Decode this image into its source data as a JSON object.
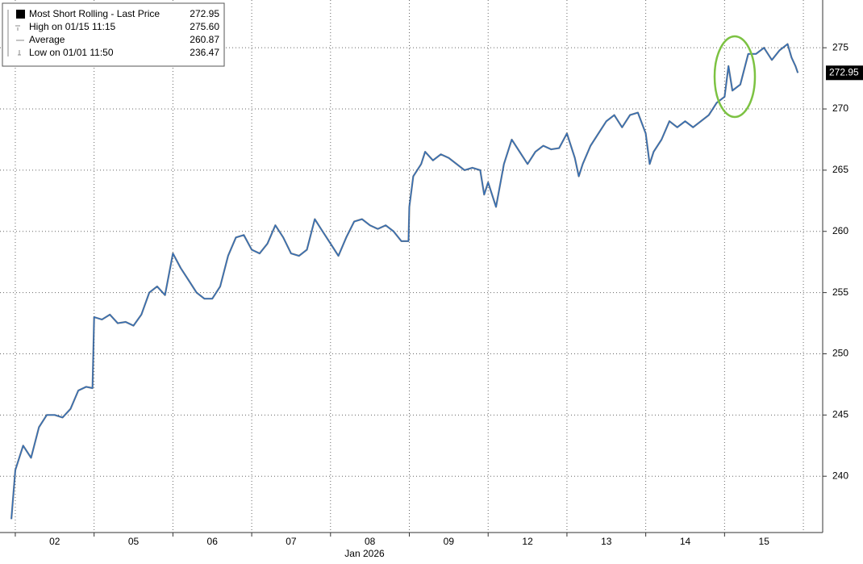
{
  "chart_data": {
    "type": "line",
    "legend": {
      "entries": [
        {
          "label": "Most Short Rolling - Last Price"
        },
        {
          "label": "High on 01/15 11:15",
          "value": "275.60"
        },
        {
          "label": "Average",
          "value": "260.87"
        },
        {
          "label": "Low on 01/01 11:50",
          "value": "236.47"
        }
      ]
    },
    "last_price": 272.95,
    "x_label": "Jan 2026",
    "xlim": [
      -0.194,
      10.245
    ],
    "xticks": [
      {
        "value": 0.5,
        "label": "02"
      },
      {
        "value": 1.5,
        "label": "05"
      },
      {
        "value": 2.5,
        "label": "06"
      },
      {
        "value": 3.5,
        "label": "07"
      },
      {
        "value": 4.5,
        "label": "08"
      },
      {
        "value": 5.5,
        "label": "09"
      },
      {
        "value": 6.5,
        "label": "12"
      },
      {
        "value": 7.5,
        "label": "13"
      },
      {
        "value": 8.5,
        "label": "14"
      },
      {
        "value": 9.5,
        "label": "15"
      }
    ],
    "ylim": [
      235.4,
      278.9
    ],
    "yticks": [
      240,
      245,
      250,
      255,
      260,
      265,
      270,
      275
    ],
    "grid": true,
    "x": [
      -0.05,
      0,
      0.1,
      0.2,
      0.3,
      0.4,
      0.5,
      0.6,
      0.7,
      0.8,
      0.9,
      0.98,
      1,
      1.1,
      1.2,
      1.3,
      1.4,
      1.5,
      1.6,
      1.7,
      1.8,
      1.9,
      2,
      2.1,
      2.2,
      2.3,
      2.4,
      2.5,
      2.6,
      2.7,
      2.8,
      2.9,
      3,
      3.1,
      3.2,
      3.3,
      3.4,
      3.5,
      3.6,
      3.7,
      3.8,
      3.9,
      4,
      4.1,
      4.2,
      4.3,
      4.4,
      4.5,
      4.6,
      4.7,
      4.8,
      4.9,
      4.99,
      5,
      5.05,
      5.15,
      5.2,
      5.3,
      5.4,
      5.5,
      5.6,
      5.7,
      5.8,
      5.9,
      5.95,
      6,
      6.1,
      6.2,
      6.3,
      6.4,
      6.5,
      6.6,
      6.7,
      6.8,
      6.9,
      7,
      7.1,
      7.15,
      7.2,
      7.3,
      7.4,
      7.5,
      7.6,
      7.7,
      7.8,
      7.9,
      8,
      8.05,
      8.1,
      8.2,
      8.3,
      8.4,
      8.5,
      8.6,
      8.7,
      8.8,
      8.9,
      9,
      9.05,
      9.1,
      9.2,
      9.3,
      9.4,
      9.5,
      9.6,
      9.7,
      9.8,
      9.85,
      9.9,
      9.93
    ],
    "series": [
      {
        "name": "Most Short Rolling - Last Price",
        "color": "#2f6fbd",
        "values": [
          236.5,
          240.5,
          242.5,
          241.5,
          244,
          245,
          245,
          244.8,
          245.5,
          247,
          247.3,
          247.2,
          253,
          252.8,
          253.2,
          252.5,
          252.6,
          252.3,
          253.2,
          255,
          255.5,
          254.8,
          258.2,
          257,
          256,
          255,
          254.5,
          254.5,
          255.5,
          258,
          259.5,
          259.7,
          258.5,
          258.2,
          259,
          260.5,
          259.5,
          258.2,
          258,
          258.5,
          261,
          260,
          259,
          258,
          259.5,
          260.8,
          261,
          260.5,
          260.2,
          260.5,
          260,
          259.2,
          259.2,
          262,
          264.5,
          265.5,
          266.5,
          265.8,
          266.3,
          266,
          265.5,
          265,
          265.2,
          265,
          263,
          264,
          262,
          265.5,
          267.5,
          266.5,
          265.5,
          266.5,
          267,
          266.7,
          266.8,
          268,
          266,
          264.5,
          265.5,
          267,
          268,
          269,
          269.5,
          268.5,
          269.5,
          269.7,
          268,
          265.5,
          266.5,
          267.5,
          269,
          268.5,
          269,
          268.5,
          269,
          269.5,
          270.5,
          271,
          273.5,
          271.5,
          272,
          274.5,
          274.5,
          275,
          274,
          274.8,
          275.3,
          274.2,
          273.5,
          272.95
        ]
      }
    ]
  }
}
